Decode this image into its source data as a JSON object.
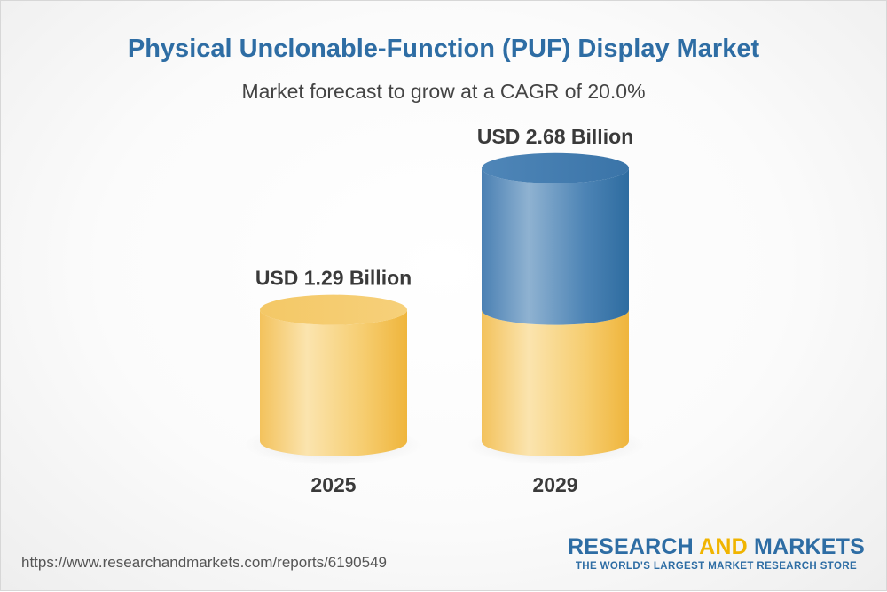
{
  "header": {
    "title": "Physical Unclonable-Function (PUF) Display Market",
    "subtitle": "Market forecast to grow at a CAGR of 20.0%"
  },
  "chart_data": {
    "type": "bar",
    "title": "Physical Unclonable-Function (PUF) Display Market",
    "subtitle": "Market forecast to grow at a CAGR of 20.0%",
    "categories": [
      "2025",
      "2029"
    ],
    "values": [
      1.29,
      2.68
    ],
    "data_labels": [
      "USD 1.29 Billion",
      "USD 2.68 Billion"
    ],
    "unit": "USD Billion",
    "xlabel": "",
    "ylabel": "",
    "grid": false,
    "colors": {
      "base": "#f5c45a",
      "growth": "#3f78ab"
    }
  },
  "footer": {
    "url": "https://www.researchandmarkets.com/reports/6190549",
    "brand_part1": "RESEARCH ",
    "brand_part2": "AND",
    "brand_part3": " MARKETS",
    "tagline": "THE WORLD'S LARGEST MARKET RESEARCH STORE"
  }
}
